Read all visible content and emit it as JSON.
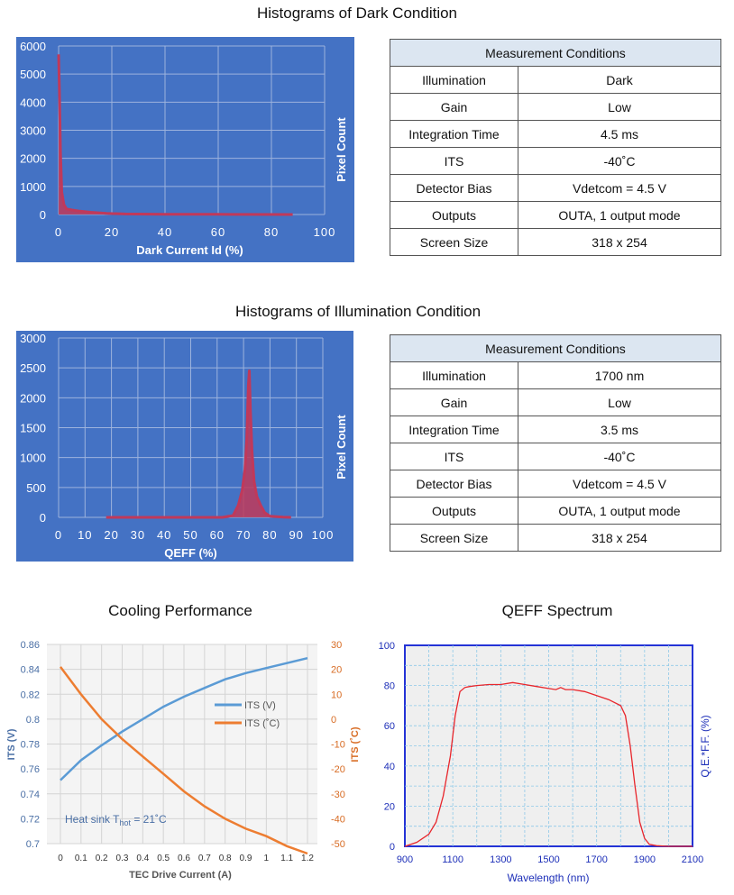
{
  "dark_section": {
    "title": "Histograms of Dark Condition",
    "table": {
      "header": "Measurement Conditions",
      "rows": [
        {
          "label": "Illumination",
          "value": "Dark"
        },
        {
          "label": "Gain",
          "value": "Low"
        },
        {
          "label": "Integration Time",
          "value": "4.5 ms"
        },
        {
          "label": "ITS",
          "value": "-40˚C"
        },
        {
          "label": "Detector Bias",
          "value": "Vdetcom = 4.5 V"
        },
        {
          "label": "Outputs",
          "value": "OUTA, 1 output mode"
        },
        {
          "label": "Screen Size",
          "value": "318 x 254"
        }
      ]
    }
  },
  "illum_section": {
    "title": "Histograms of Illumination Condition",
    "table": {
      "header": "Measurement Conditions",
      "rows": [
        {
          "label": "Illumination",
          "value": "1700 nm"
        },
        {
          "label": "Gain",
          "value": "Low"
        },
        {
          "label": "Integration Time",
          "value": "3.5 ms"
        },
        {
          "label": "ITS",
          "value": "-40˚C"
        },
        {
          "label": "Detector Bias",
          "value": "Vdetcom = 4.5 V"
        },
        {
          "label": "Outputs",
          "value": "OUTA, 1 output mode"
        },
        {
          "label": "Screen Size",
          "value": "318 x 254"
        }
      ]
    }
  },
  "chart_data": [
    {
      "id": "dark",
      "type": "area",
      "title": "",
      "xlabel": "Dark Current Id (%)",
      "ylabel": "Pixel Count",
      "xlim": [
        0,
        100
      ],
      "ylim": [
        0,
        6000
      ],
      "xticks": [
        "0",
        "20",
        "40",
        "60",
        "80",
        "100"
      ],
      "yticks": [
        "0",
        "1000",
        "2000",
        "3000",
        "4000",
        "5000",
        "6000"
      ],
      "grid": true,
      "background": "#4472c4",
      "series": [
        {
          "color": "#c0395a",
          "x": [
            0,
            0.3,
            0.7,
            1.2,
            2,
            3,
            5,
            8,
            12,
            18,
            25,
            40,
            60,
            88
          ],
          "y": [
            5700,
            4400,
            2200,
            800,
            350,
            200,
            160,
            120,
            80,
            40,
            20,
            10,
            5,
            0
          ]
        }
      ]
    },
    {
      "id": "illum",
      "type": "area",
      "title": "",
      "xlabel": "QEFF (%)",
      "ylabel": "Pixel Count",
      "xlim": [
        0,
        100
      ],
      "ylim": [
        0,
        3000
      ],
      "xticks": [
        "0",
        "10",
        "20",
        "30",
        "40",
        "50",
        "60",
        "70",
        "80",
        "90",
        "100"
      ],
      "yticks": [
        "0",
        "500",
        "1000",
        "1500",
        "2000",
        "2500",
        "3000"
      ],
      "grid": true,
      "background": "#4472c4",
      "series": [
        {
          "color": "#c0395a",
          "x": [
            18,
            30,
            50,
            62,
            66,
            68,
            69.5,
            70.5,
            71.2,
            71.8,
            72.2,
            72.6,
            73.2,
            74,
            75,
            76.5,
            78,
            80,
            85,
            88
          ],
          "y": [
            0,
            0,
            0,
            0,
            30,
            200,
            450,
            800,
            1300,
            2200,
            2450,
            1800,
            1100,
            600,
            350,
            200,
            80,
            20,
            5,
            0
          ]
        }
      ]
    },
    {
      "id": "cooling",
      "type": "line",
      "title": "Cooling Performance",
      "xlabel": "TEC Drive Current (A)",
      "ylabel": "ITS (V)",
      "y2label": "ITS (˚C)",
      "xlim": [
        0,
        1.2
      ],
      "ylim": [
        0.7,
        0.86
      ],
      "y2lim": [
        -50,
        30
      ],
      "xticks": [
        "0",
        "0.1",
        "0.2",
        "0.3",
        "0.4",
        "0.5",
        "0.6",
        "0.7",
        "0.8",
        "0.9",
        "1",
        "1.1",
        "1.2"
      ],
      "yticks": [
        "0.7",
        "0.72",
        "0.74",
        "0.76",
        "0.78",
        "0.8",
        "0.82",
        "0.84",
        "0.86"
      ],
      "y2ticks": [
        "-50",
        "-40",
        "-30",
        "-20",
        "-10",
        "0",
        "10",
        "20",
        "30"
      ],
      "grid": true,
      "legend_position": "center-right",
      "annotation": {
        "text": "Heat sink T",
        "sub": "hot",
        "suffix": " = 21˚C"
      },
      "x": [
        0,
        0.1,
        0.2,
        0.3,
        0.4,
        0.5,
        0.6,
        0.7,
        0.8,
        0.9,
        1.0,
        1.1,
        1.2
      ],
      "series": [
        {
          "name": "ITS (V)",
          "axis": "left",
          "color": "#5b9bd5",
          "values": [
            0.751,
            0.767,
            0.779,
            0.79,
            0.8,
            0.81,
            0.818,
            0.825,
            0.832,
            0.837,
            0.841,
            0.845,
            0.849
          ]
        },
        {
          "name": "ITS (˚C)",
          "axis": "right",
          "color": "#ed7d31",
          "values": [
            21,
            10,
            0,
            -8,
            -15,
            -22,
            -29,
            -35,
            -40,
            -44,
            -47,
            -51,
            -54
          ]
        }
      ]
    },
    {
      "id": "qeff",
      "type": "line",
      "title": "QEFF Spectrum",
      "xlabel": "Wavelength (nm)",
      "ylabel": "",
      "y2label": "Q.E.*F.F. (%)",
      "xlim": [
        900,
        2100
      ],
      "ylim": [
        0,
        100
      ],
      "xticks": [
        "900",
        "1100",
        "1300",
        "1500",
        "1700",
        "1900",
        "2100"
      ],
      "yticks": [
        "0",
        "20",
        "40",
        "60",
        "80",
        "100"
      ],
      "grid": true,
      "series": [
        {
          "color": "#e8262c",
          "x": [
            900,
            950,
            1000,
            1030,
            1060,
            1090,
            1110,
            1130,
            1150,
            1170,
            1200,
            1250,
            1300,
            1350,
            1400,
            1450,
            1500,
            1530,
            1550,
            1570,
            1600,
            1650,
            1700,
            1750,
            1800,
            1820,
            1840,
            1860,
            1880,
            1900,
            1920,
            1950,
            2000,
            2100
          ],
          "y": [
            0,
            2,
            6,
            12,
            25,
            45,
            65,
            77,
            79,
            79.5,
            80,
            80.5,
            80.5,
            81.5,
            80.5,
            79.5,
            78.5,
            78,
            79,
            78,
            78,
            77,
            75,
            73,
            70,
            65,
            50,
            30,
            12,
            4,
            1,
            0.3,
            0,
            0
          ]
        }
      ]
    }
  ]
}
